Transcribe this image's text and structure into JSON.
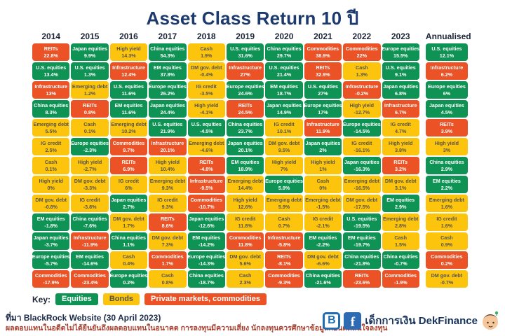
{
  "title": "Asset Class Return 10 ปี",
  "colors": {
    "equities": "#0f9355",
    "bonds": "#fdc40e",
    "private": "#eb5226",
    "text_on_dark": "#ffffff",
    "text_on_yellow": "#55544a",
    "title": "#1d3a6e",
    "disclaimer": "#a8402f"
  },
  "chart_data": {
    "type": "table",
    "title": "Asset Class Return 10 ปี",
    "value_unit": "%",
    "legend": {
      "label": "Key:",
      "items": [
        {
          "label": "Equities",
          "category": "equities"
        },
        {
          "label": "Bonds",
          "category": "bonds"
        },
        {
          "label": "Private markets, commodities",
          "category": "private"
        }
      ]
    },
    "columns": [
      {
        "year": "2014",
        "cells": [
          {
            "label": "REITs",
            "value": "22.8%",
            "category": "private"
          },
          {
            "label": "U.S. equities",
            "value": "13.4%",
            "category": "equities"
          },
          {
            "label": "Infrastructure",
            "value": "13%",
            "category": "private"
          },
          {
            "label": "China equities",
            "value": "8.3%",
            "category": "equities"
          },
          {
            "label": "Emerging debt",
            "value": "5.5%",
            "category": "bonds"
          },
          {
            "label": "IG credit",
            "value": "2.5%",
            "category": "bonds"
          },
          {
            "label": "Cash",
            "value": "0.1%",
            "category": "bonds"
          },
          {
            "label": "High yield",
            "value": "0%",
            "category": "bonds"
          },
          {
            "label": "DM gov. debt",
            "value": "-0.8%",
            "category": "bonds"
          },
          {
            "label": "EM equities",
            "value": "-1.8%",
            "category": "equities"
          },
          {
            "label": "Japan equities",
            "value": "-3.7%",
            "category": "equities"
          },
          {
            "label": "Europe equities",
            "value": "-5.7%",
            "category": "equities"
          },
          {
            "label": "Commodities",
            "value": "-17.9%",
            "category": "private"
          }
        ]
      },
      {
        "year": "2015",
        "cells": [
          {
            "label": "Japan equities",
            "value": "9.9%",
            "category": "equities"
          },
          {
            "label": "U.S. equities",
            "value": "1.3%",
            "category": "equities"
          },
          {
            "label": "Emerging debt",
            "value": "1.2%",
            "category": "bonds"
          },
          {
            "label": "REITs",
            "value": "0.8%",
            "category": "private"
          },
          {
            "label": "Cash",
            "value": "0.1%",
            "category": "bonds"
          },
          {
            "label": "Europe equities",
            "value": "-2.3%",
            "category": "equities"
          },
          {
            "label": "High yield",
            "value": "-2.7%",
            "category": "bonds"
          },
          {
            "label": "DM gov. debt",
            "value": "-3.3%",
            "category": "bonds"
          },
          {
            "label": "IG credit",
            "value": "-3.8%",
            "category": "bonds"
          },
          {
            "label": "China equities",
            "value": "-7.6%",
            "category": "equities"
          },
          {
            "label": "Infrastructure",
            "value": "-11.9%",
            "category": "private"
          },
          {
            "label": "EM equities",
            "value": "-14.6%",
            "category": "equities"
          },
          {
            "label": "Commodities",
            "value": "-23.4%",
            "category": "private"
          }
        ]
      },
      {
        "year": "2016",
        "cells": [
          {
            "label": "High yield",
            "value": "14.3%",
            "category": "bonds"
          },
          {
            "label": "Infrastructure",
            "value": "12.4%",
            "category": "private"
          },
          {
            "label": "U.S. equities",
            "value": "11.6%",
            "category": "equities"
          },
          {
            "label": "EM equities",
            "value": "11.6%",
            "category": "equities"
          },
          {
            "label": "Emerging debt",
            "value": "10.2%",
            "category": "bonds"
          },
          {
            "label": "Commodities",
            "value": "9.7%",
            "category": "private"
          },
          {
            "label": "REITs",
            "value": "6.9%",
            "category": "private"
          },
          {
            "label": "IG credit",
            "value": "6%",
            "category": "bonds"
          },
          {
            "label": "Japan equities",
            "value": "2.7%",
            "category": "equities"
          },
          {
            "label": "DM gov. debt",
            "value": "1.7%",
            "category": "bonds"
          },
          {
            "label": "China equities",
            "value": "1.1%",
            "category": "equities"
          },
          {
            "label": "Cash",
            "value": "0.4%",
            "category": "bonds"
          },
          {
            "label": "Europe equities",
            "value": "0.2%",
            "category": "equities"
          }
        ]
      },
      {
        "year": "2017",
        "cells": [
          {
            "label": "China equities",
            "value": "54.3%",
            "category": "equities"
          },
          {
            "label": "EM equities",
            "value": "37.8%",
            "category": "equities"
          },
          {
            "label": "Europe equities",
            "value": "26.2%",
            "category": "equities"
          },
          {
            "label": "Japan equities",
            "value": "24.4%",
            "category": "equities"
          },
          {
            "label": "U.S. equities",
            "value": "21.9%",
            "category": "equities"
          },
          {
            "label": "Infrastructure",
            "value": "20.1%",
            "category": "private"
          },
          {
            "label": "High yield",
            "value": "10.4%",
            "category": "bonds"
          },
          {
            "label": "Emerging debt",
            "value": "9.3%",
            "category": "bonds"
          },
          {
            "label": "IG credit",
            "value": "9.3%",
            "category": "bonds"
          },
          {
            "label": "REITs",
            "value": "8.6%",
            "category": "private"
          },
          {
            "label": "DM gov. debt",
            "value": "7.3%",
            "category": "bonds"
          },
          {
            "label": "Commodities",
            "value": "1.7%",
            "category": "private"
          },
          {
            "label": "Cash",
            "value": "0.8%",
            "category": "bonds"
          }
        ]
      },
      {
        "year": "2018",
        "cells": [
          {
            "label": "Cash",
            "value": "1.9%",
            "category": "bonds"
          },
          {
            "label": "DM gov. debt",
            "value": "-0.4%",
            "category": "bonds"
          },
          {
            "label": "IG credit",
            "value": "-3.5%",
            "category": "bonds"
          },
          {
            "label": "High yield",
            "value": "-4.1%",
            "category": "bonds"
          },
          {
            "label": "U.S. equities",
            "value": "-4.5%",
            "category": "equities"
          },
          {
            "label": "Emerging debt",
            "value": "-4.6%",
            "category": "bonds"
          },
          {
            "label": "REITs",
            "value": "-4.8%",
            "category": "private"
          },
          {
            "label": "Infrastructure",
            "value": "-9.5%",
            "category": "private"
          },
          {
            "label": "Commodities",
            "value": "-10.7%",
            "category": "private"
          },
          {
            "label": "Japan equities",
            "value": "-12.6%",
            "category": "equities"
          },
          {
            "label": "EM equities",
            "value": "-14.2%",
            "category": "equities"
          },
          {
            "label": "Europe equities",
            "value": "-14.3%",
            "category": "equities"
          },
          {
            "label": "China equities",
            "value": "-18.7%",
            "category": "equities"
          }
        ]
      },
      {
        "year": "2019",
        "cells": [
          {
            "label": "U.S. equities",
            "value": "31.6%",
            "category": "equities"
          },
          {
            "label": "Infrastructure",
            "value": "27%",
            "category": "private"
          },
          {
            "label": "Europe equities",
            "value": "24.6%",
            "category": "equities"
          },
          {
            "label": "REITs",
            "value": "24.5%",
            "category": "private"
          },
          {
            "label": "China equities",
            "value": "23.7%",
            "category": "equities"
          },
          {
            "label": "Japan equities",
            "value": "20.1%",
            "category": "equities"
          },
          {
            "label": "EM equities",
            "value": "18.9%",
            "category": "equities"
          },
          {
            "label": "Emerging debt",
            "value": "14.4%",
            "category": "bonds"
          },
          {
            "label": "High yield",
            "value": "12.6%",
            "category": "bonds"
          },
          {
            "label": "IG credit",
            "value": "11.8%",
            "category": "bonds"
          },
          {
            "label": "Commodities",
            "value": "11.8%",
            "category": "private"
          },
          {
            "label": "DM gov. debt",
            "value": "5.6%",
            "category": "bonds"
          },
          {
            "label": "Cash",
            "value": "2.3%",
            "category": "bonds"
          }
        ]
      },
      {
        "year": "2020",
        "cells": [
          {
            "label": "China equities",
            "value": "29.7%",
            "category": "equities"
          },
          {
            "label": "U.S. equities",
            "value": "21.4%",
            "category": "equities"
          },
          {
            "label": "EM equities",
            "value": "18.7%",
            "category": "equities"
          },
          {
            "label": "Japan equities",
            "value": "14.9%",
            "category": "equities"
          },
          {
            "label": "IG credit",
            "value": "10.1%",
            "category": "bonds"
          },
          {
            "label": "DM gov. debt",
            "value": "9.5%",
            "category": "bonds"
          },
          {
            "label": "High yield",
            "value": "7%",
            "category": "bonds"
          },
          {
            "label": "Europe equities",
            "value": "5.9%",
            "category": "equities"
          },
          {
            "label": "Emerging debt",
            "value": "5.9%",
            "category": "bonds"
          },
          {
            "label": "Cash",
            "value": "0.7%",
            "category": "bonds"
          },
          {
            "label": "Infrastructure",
            "value": "-5.8%",
            "category": "private"
          },
          {
            "label": "REITs",
            "value": "-8.1%",
            "category": "private"
          },
          {
            "label": "Commodities",
            "value": "-9.3%",
            "category": "private"
          }
        ]
      },
      {
        "year": "2021",
        "cells": [
          {
            "label": "Commodities",
            "value": "38.9%",
            "category": "private"
          },
          {
            "label": "REITs",
            "value": "32.9%",
            "category": "private"
          },
          {
            "label": "U.S. equities",
            "value": "27%",
            "category": "equities"
          },
          {
            "label": "Europe equities",
            "value": "17%",
            "category": "equities"
          },
          {
            "label": "Infrastructure",
            "value": "11.9%",
            "category": "private"
          },
          {
            "label": "Japan equities",
            "value": "2%",
            "category": "equities"
          },
          {
            "label": "High yield",
            "value": "1%",
            "category": "bonds"
          },
          {
            "label": "Cash",
            "value": "0%",
            "category": "bonds"
          },
          {
            "label": "Emerging debt",
            "value": "-1.5%",
            "category": "bonds"
          },
          {
            "label": "IG credit",
            "value": "-2.1%",
            "category": "bonds"
          },
          {
            "label": "EM equities",
            "value": "-2.2%",
            "category": "equities"
          },
          {
            "label": "DM gov. debt",
            "value": "-6.6%",
            "category": "bonds"
          },
          {
            "label": "China equities",
            "value": "-21.6%",
            "category": "equities"
          }
        ]
      },
      {
        "year": "2022",
        "cells": [
          {
            "label": "Commodities",
            "value": "22%",
            "category": "private"
          },
          {
            "label": "Cash",
            "value": "1.3%",
            "category": "bonds"
          },
          {
            "label": "Infrastructure",
            "value": "-0.2%",
            "category": "private"
          },
          {
            "label": "High yield",
            "value": "-12.7%",
            "category": "bonds"
          },
          {
            "label": "Europe equities",
            "value": "-14.5%",
            "category": "equities"
          },
          {
            "label": "IG credit",
            "value": "-16.1%",
            "category": "bonds"
          },
          {
            "label": "Japan equities",
            "value": "-16.3%",
            "category": "equities"
          },
          {
            "label": "Emerging debt",
            "value": "-16.5%",
            "category": "bonds"
          },
          {
            "label": "DM gov. debt",
            "value": "-17.5%",
            "category": "bonds"
          },
          {
            "label": "U.S. equities",
            "value": "-19.5%",
            "category": "equities"
          },
          {
            "label": "EM equities",
            "value": "-19.7%",
            "category": "equities"
          },
          {
            "label": "China equities",
            "value": "-21.8%",
            "category": "equities"
          },
          {
            "label": "REITs",
            "value": "-23.6%",
            "category": "private"
          }
        ]
      },
      {
        "year": "2023",
        "cells": [
          {
            "label": "Europe equities",
            "value": "15.5%",
            "category": "equities"
          },
          {
            "label": "U.S. equities",
            "value": "9.1%",
            "category": "equities"
          },
          {
            "label": "Japan equities",
            "value": "6.8%",
            "category": "equities"
          },
          {
            "label": "Infrastructure",
            "value": "6.7%",
            "category": "private"
          },
          {
            "label": "IG credit",
            "value": "4.7%",
            "category": "bonds"
          },
          {
            "label": "High yield",
            "value": "3.8%",
            "category": "bonds"
          },
          {
            "label": "REITs",
            "value": "3.2%",
            "category": "private"
          },
          {
            "label": "DM gov. debt",
            "value": "3.1%",
            "category": "bonds"
          },
          {
            "label": "EM equities",
            "value": "2.9%",
            "category": "equities"
          },
          {
            "label": "Emerging debt",
            "value": "2.8%",
            "category": "bonds"
          },
          {
            "label": "Cash",
            "value": "1.5%",
            "category": "bonds"
          },
          {
            "label": "China equities",
            "value": "-0.7%",
            "category": "equities"
          },
          {
            "label": "Commodities",
            "value": "-1.9%",
            "category": "private"
          }
        ]
      },
      {
        "year": "Annualised",
        "cells": [
          {
            "label": "U.S. equities",
            "value": "12.1%",
            "category": "equities"
          },
          {
            "label": "Infrastructure",
            "value": "6.2%",
            "category": "private"
          },
          {
            "label": "Europe equities",
            "value": "6%",
            "category": "equities"
          },
          {
            "label": "Japan equities",
            "value": "4.5%",
            "category": "equities"
          },
          {
            "label": "REITs",
            "value": "3.9%",
            "category": "private"
          },
          {
            "label": "High yield",
            "value": "3%",
            "category": "bonds"
          },
          {
            "label": "China equities",
            "value": "2.9%",
            "category": "equities"
          },
          {
            "label": "EM equities",
            "value": "2.2%",
            "category": "equities"
          },
          {
            "label": "Emerging debt",
            "value": "1.6%",
            "category": "bonds"
          },
          {
            "label": "IG credit",
            "value": "1.6%",
            "category": "bonds"
          },
          {
            "label": "Cash",
            "value": "0.9%",
            "category": "bonds"
          },
          {
            "label": "Commodities",
            "value": "0.2%",
            "category": "private"
          },
          {
            "label": "DM gov. debt",
            "value": "-0.7%",
            "category": "bonds"
          }
        ]
      }
    ]
  },
  "footer": {
    "source": "ที่มา BlackRock Website (30 April 2023)",
    "disclaimer": "ผลตอบแทนในอดีตไม่ได้ยืนยันถึงผลตอบแทนในอนาคต การลงทุนมีความเสี่ยง นักลงทุนควรศึกษาข้อมูลก่อนตัดสินใจลงทุน",
    "brand": {
      "blockdit_letter": "B",
      "facebook_letter": "f",
      "name": "เด็กการเงิน DekFinance"
    }
  }
}
